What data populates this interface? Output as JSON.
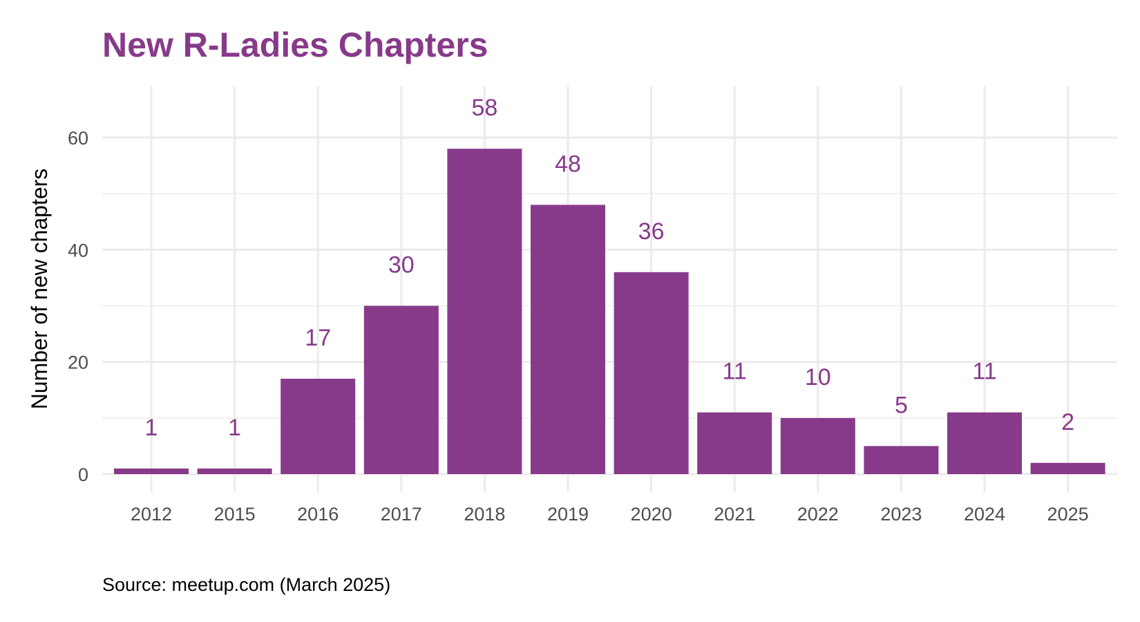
{
  "chart_data": {
    "type": "bar",
    "title": "New R-Ladies Chapters",
    "xlabel": "",
    "ylabel": "Number of new chapters",
    "caption": "Source: meetup.com (March 2025)",
    "categories": [
      "2012",
      "2015",
      "2016",
      "2017",
      "2018",
      "2019",
      "2020",
      "2021",
      "2022",
      "2023",
      "2024",
      "2025"
    ],
    "values": [
      1,
      1,
      17,
      30,
      58,
      48,
      36,
      11,
      10,
      5,
      11,
      2
    ],
    "ylim": [
      0,
      69
    ],
    "yticks": [
      0,
      20,
      40,
      60
    ],
    "grid": true,
    "bar_color": "#873A8A",
    "title_color": "#873A8A",
    "label_color": "#873A8A"
  }
}
